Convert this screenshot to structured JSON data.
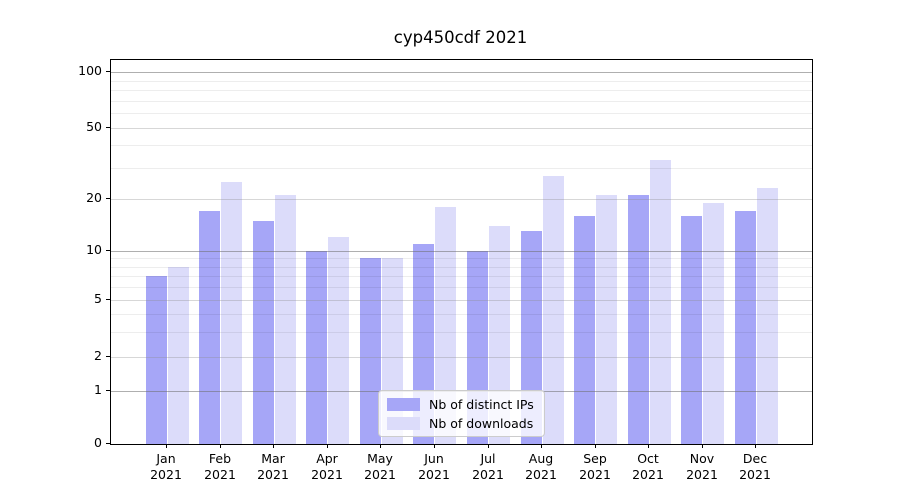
{
  "figure": {
    "title": "cyp450cdf 2021"
  },
  "chart_data": {
    "type": "bar",
    "title": "cyp450cdf 2021",
    "xlabel": "",
    "ylabel": "",
    "categories": [
      "Jan",
      "Feb",
      "Mar",
      "Apr",
      "May",
      "Jun",
      "Jul",
      "Aug",
      "Sep",
      "Oct",
      "Nov",
      "Dec"
    ],
    "category_year": "2021",
    "series": [
      {
        "name": "Nb of distinct IPs",
        "color": "#a6a6f7",
        "values": [
          7,
          17,
          15,
          10,
          9,
          11,
          10,
          13,
          16,
          21,
          16,
          17
        ]
      },
      {
        "name": "Nb of downloads",
        "color": "#dcdcfa",
        "values": [
          8,
          25,
          21,
          12,
          9,
          18,
          14,
          27,
          21,
          33,
          19,
          23
        ]
      }
    ],
    "yticks": [
      0,
      1,
      2,
      5,
      10,
      20,
      50,
      100
    ],
    "ylim": [
      0,
      110
    ],
    "yscale": "asinh-like (0,1,2,5,10,20,50,100 ticks)",
    "grid": true,
    "legend_position": "bottom-center"
  }
}
